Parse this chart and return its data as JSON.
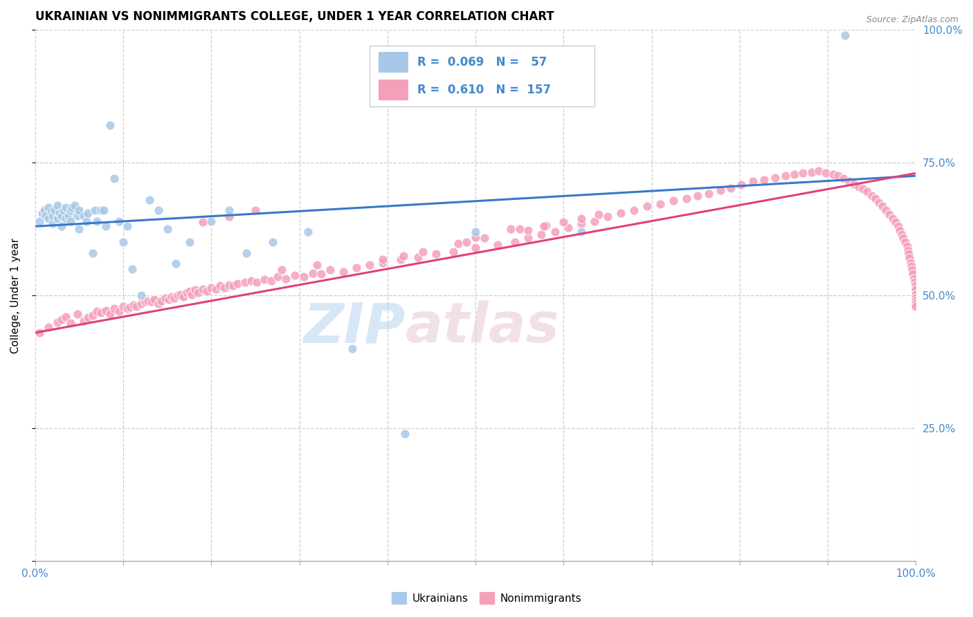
{
  "title": "UKRAINIAN VS NONIMMIGRANTS COLLEGE, UNDER 1 YEAR CORRELATION CHART",
  "source": "Source: ZipAtlas.com",
  "ylabel": "College, Under 1 year",
  "xlim": [
    0.0,
    1.0
  ],
  "ylim": [
    0.0,
    1.0
  ],
  "blue_color": "#a8c8e8",
  "pink_color": "#f4a0b8",
  "blue_line_color": "#3878c8",
  "pink_line_color": "#e0407a",
  "axis_label_color": "#4488cc",
  "legend_blue_text": "R =  0.069   N =   57",
  "legend_pink_text": "R =  0.610   N =  157",
  "blue_intercept": 0.63,
  "blue_slope": 0.095,
  "pink_intercept": 0.43,
  "pink_slope": 0.3,
  "ukrainians_x": [
    0.005,
    0.008,
    0.01,
    0.012,
    0.015,
    0.015,
    0.018,
    0.02,
    0.02,
    0.022,
    0.025,
    0.025,
    0.028,
    0.03,
    0.03,
    0.032,
    0.035,
    0.035,
    0.038,
    0.04,
    0.04,
    0.042,
    0.045,
    0.048,
    0.05,
    0.05,
    0.055,
    0.058,
    0.06,
    0.065,
    0.068,
    0.07,
    0.075,
    0.078,
    0.08,
    0.085,
    0.09,
    0.095,
    0.1,
    0.105,
    0.11,
    0.12,
    0.13,
    0.14,
    0.15,
    0.16,
    0.175,
    0.2,
    0.22,
    0.24,
    0.27,
    0.31,
    0.36,
    0.42,
    0.5,
    0.62,
    0.92
  ],
  "ukrainians_y": [
    0.64,
    0.655,
    0.66,
    0.65,
    0.645,
    0.665,
    0.658,
    0.635,
    0.65,
    0.66,
    0.645,
    0.67,
    0.655,
    0.63,
    0.65,
    0.66,
    0.645,
    0.665,
    0.65,
    0.64,
    0.66,
    0.665,
    0.67,
    0.65,
    0.625,
    0.66,
    0.65,
    0.64,
    0.655,
    0.58,
    0.66,
    0.64,
    0.66,
    0.66,
    0.63,
    0.82,
    0.72,
    0.64,
    0.6,
    0.63,
    0.55,
    0.5,
    0.68,
    0.66,
    0.625,
    0.56,
    0.6,
    0.64,
    0.66,
    0.58,
    0.6,
    0.62,
    0.4,
    0.24,
    0.62,
    0.62,
    0.99
  ],
  "nonimmigrants_x": [
    0.005,
    0.015,
    0.025,
    0.03,
    0.035,
    0.04,
    0.048,
    0.055,
    0.06,
    0.065,
    0.07,
    0.075,
    0.08,
    0.085,
    0.09,
    0.095,
    0.1,
    0.105,
    0.108,
    0.112,
    0.115,
    0.12,
    0.125,
    0.128,
    0.132,
    0.135,
    0.14,
    0.143,
    0.148,
    0.152,
    0.155,
    0.158,
    0.162,
    0.165,
    0.168,
    0.172,
    0.175,
    0.178,
    0.182,
    0.185,
    0.19,
    0.195,
    0.2,
    0.205,
    0.21,
    0.215,
    0.22,
    0.225,
    0.23,
    0.238,
    0.245,
    0.252,
    0.26,
    0.268,
    0.275,
    0.285,
    0.295,
    0.305,
    0.315,
    0.325,
    0.335,
    0.35,
    0.365,
    0.38,
    0.395,
    0.415,
    0.435,
    0.455,
    0.475,
    0.5,
    0.525,
    0.545,
    0.56,
    0.575,
    0.59,
    0.605,
    0.62,
    0.635,
    0.65,
    0.665,
    0.68,
    0.695,
    0.71,
    0.725,
    0.74,
    0.752,
    0.765,
    0.778,
    0.79,
    0.802,
    0.815,
    0.828,
    0.84,
    0.852,
    0.862,
    0.872,
    0.882,
    0.89,
    0.898,
    0.906,
    0.912,
    0.918,
    0.924,
    0.93,
    0.935,
    0.94,
    0.945,
    0.95,
    0.954,
    0.958,
    0.962,
    0.966,
    0.97,
    0.974,
    0.977,
    0.98,
    0.982,
    0.984,
    0.986,
    0.988,
    0.99,
    0.991,
    0.992,
    0.993,
    0.994,
    0.995,
    0.996,
    0.997,
    0.998,
    0.999,
    1.0,
    1.0,
    1.0,
    1.0,
    1.0,
    1.0,
    1.0,
    0.48,
    0.5,
    0.54,
    0.28,
    0.32,
    0.19,
    0.22,
    0.25,
    0.55,
    0.58,
    0.395,
    0.418,
    0.44,
    0.578,
    0.6,
    0.62,
    0.64,
    0.49,
    0.51,
    0.56
  ],
  "nonimmigrants_y": [
    0.43,
    0.44,
    0.45,
    0.455,
    0.46,
    0.448,
    0.465,
    0.452,
    0.458,
    0.462,
    0.47,
    0.468,
    0.472,
    0.465,
    0.475,
    0.47,
    0.48,
    0.475,
    0.478,
    0.482,
    0.48,
    0.485,
    0.488,
    0.49,
    0.488,
    0.492,
    0.485,
    0.49,
    0.495,
    0.492,
    0.498,
    0.495,
    0.5,
    0.502,
    0.498,
    0.505,
    0.508,
    0.502,
    0.51,
    0.505,
    0.512,
    0.508,
    0.515,
    0.512,
    0.518,
    0.515,
    0.52,
    0.518,
    0.522,
    0.525,
    0.528,
    0.525,
    0.53,
    0.528,
    0.535,
    0.532,
    0.538,
    0.535,
    0.542,
    0.54,
    0.548,
    0.545,
    0.552,
    0.558,
    0.562,
    0.568,
    0.572,
    0.578,
    0.582,
    0.59,
    0.595,
    0.6,
    0.608,
    0.615,
    0.62,
    0.628,
    0.635,
    0.64,
    0.648,
    0.655,
    0.66,
    0.668,
    0.672,
    0.678,
    0.682,
    0.688,
    0.692,
    0.698,
    0.702,
    0.708,
    0.715,
    0.718,
    0.722,
    0.725,
    0.728,
    0.73,
    0.732,
    0.734,
    0.73,
    0.728,
    0.725,
    0.72,
    0.715,
    0.71,
    0.705,
    0.7,
    0.695,
    0.688,
    0.682,
    0.675,
    0.668,
    0.66,
    0.652,
    0.645,
    0.638,
    0.63,
    0.622,
    0.615,
    0.608,
    0.6,
    0.592,
    0.585,
    0.578,
    0.57,
    0.562,
    0.555,
    0.548,
    0.54,
    0.532,
    0.525,
    0.518,
    0.51,
    0.502,
    0.495,
    0.49,
    0.485,
    0.48,
    0.598,
    0.61,
    0.625,
    0.548,
    0.558,
    0.638,
    0.648,
    0.66,
    0.625,
    0.632,
    0.568,
    0.575,
    0.582,
    0.63,
    0.638,
    0.645,
    0.652,
    0.6,
    0.608,
    0.622
  ]
}
